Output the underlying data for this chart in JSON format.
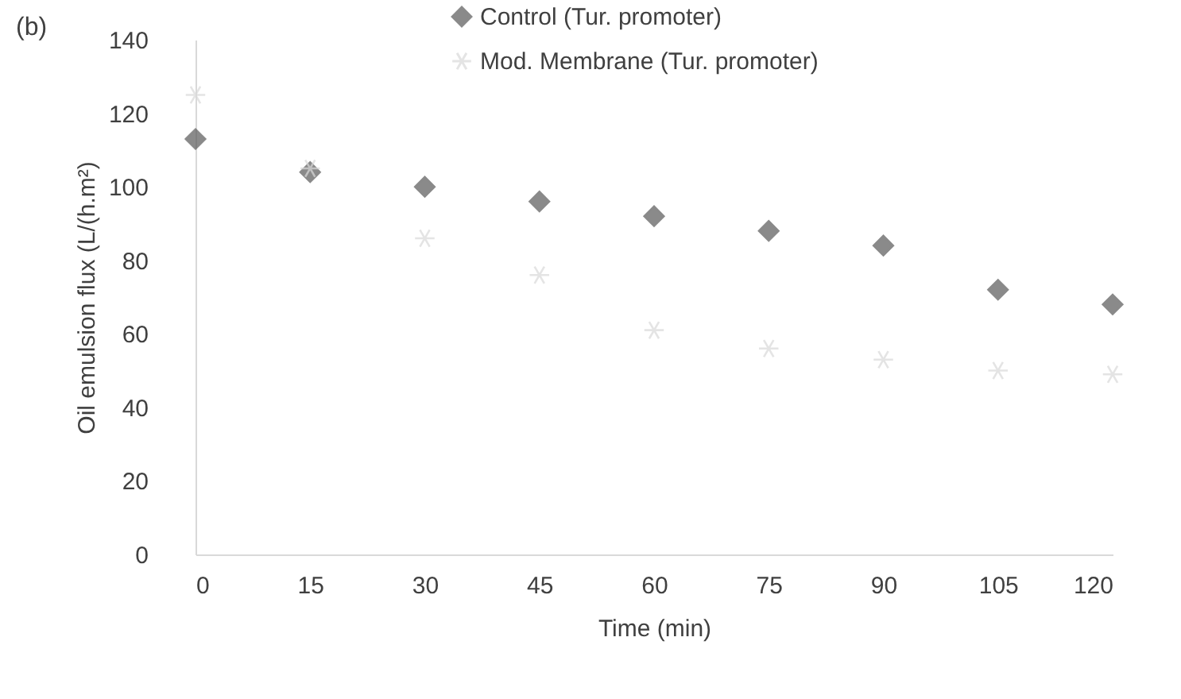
{
  "chart_data": {
    "type": "scatter",
    "xlabel": "Time (min)",
    "ylabel": "Oil emulsion flux (L/(h.m²)",
    "annotations": [
      "(b)"
    ],
    "x": [
      0,
      15,
      30,
      45,
      60,
      75,
      90,
      105,
      120
    ],
    "series": [
      {
        "name": "Control (Tur. promoter)",
        "color": "#595959",
        "marker": "diamond",
        "values": [
          113,
          104,
          100,
          96,
          92,
          88,
          84,
          72,
          68
        ]
      },
      {
        "name": "Mod. Membrane (Tur. promoter)",
        "color": "#d9d9d9",
        "marker": "cross",
        "values": [
          125,
          105,
          86,
          76,
          61,
          56,
          53,
          50,
          49
        ]
      }
    ],
    "xlim": [
      0,
      120
    ],
    "xticks": [
      0,
      15,
      30,
      45,
      60,
      75,
      90,
      105,
      120
    ],
    "ylim": [
      0,
      140
    ],
    "yticks": [
      0,
      20,
      40,
      60,
      80,
      100,
      120,
      140
    ],
    "grid": false,
    "legend": "top right"
  }
}
